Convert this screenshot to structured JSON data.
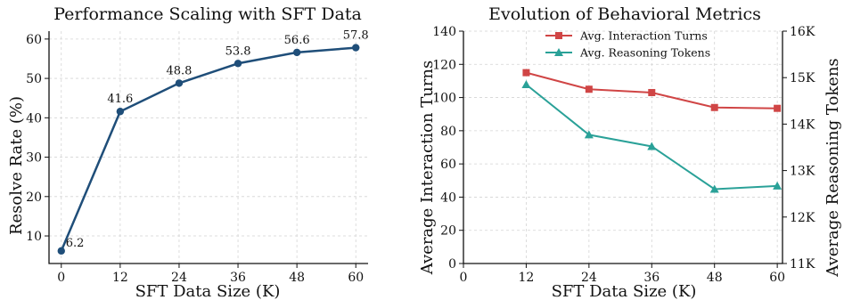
{
  "chart_data": [
    {
      "type": "line",
      "title": "Performance Scaling with SFT Data",
      "xlabel": "SFT Data Size (K)",
      "ylabel": "Resolve Rate (%)",
      "x": [
        0,
        12,
        24,
        36,
        48,
        60
      ],
      "xticks": [
        0,
        12,
        24,
        36,
        48,
        60
      ],
      "xlim": [
        -2.5,
        62.5
      ],
      "ylim": [
        3,
        62
      ],
      "yticks": [
        10,
        20,
        30,
        40,
        50,
        60
      ],
      "grid": true,
      "series": [
        {
          "values": [
            6.2,
            41.6,
            48.8,
            53.8,
            56.6,
            57.8
          ],
          "color": "#1f4e79",
          "marker": "circle"
        }
      ],
      "data_labels": [
        "6.2",
        "41.6",
        "48.8",
        "53.8",
        "56.6",
        "57.8"
      ]
    },
    {
      "type": "line",
      "title": "Evolution of Behavioral Metrics",
      "xlabel": "SFT Data Size (K)",
      "ylabel": "Average Interaction Turns",
      "y2label": "Average Reasoning Tokens",
      "x": [
        12,
        24,
        36,
        48,
        60
      ],
      "xticks": [
        0,
        12,
        24,
        36,
        48,
        60
      ],
      "xlim": [
        0,
        61
      ],
      "ylim": [
        0,
        140
      ],
      "yticks": [
        0,
        20,
        40,
        60,
        80,
        100,
        120,
        140
      ],
      "y2lim": [
        11000,
        16000
      ],
      "y2ticks": [
        11000,
        12000,
        13000,
        14000,
        15000,
        16000
      ],
      "y2ticklabels": [
        "11K",
        "12K",
        "13K",
        "14K",
        "15K",
        "16K"
      ],
      "grid": true,
      "legend": "top-center",
      "series": [
        {
          "name": "Avg. Interaction Turns",
          "axis": "left",
          "values": [
            115,
            105,
            103,
            94,
            93.5
          ],
          "color": "#d04545",
          "marker": "square"
        },
        {
          "name": "Avg. Reasoning Tokens",
          "axis": "right",
          "values": [
            14850,
            13770,
            13520,
            12600,
            12670
          ],
          "color": "#2aa198",
          "marker": "triangle"
        }
      ]
    }
  ]
}
